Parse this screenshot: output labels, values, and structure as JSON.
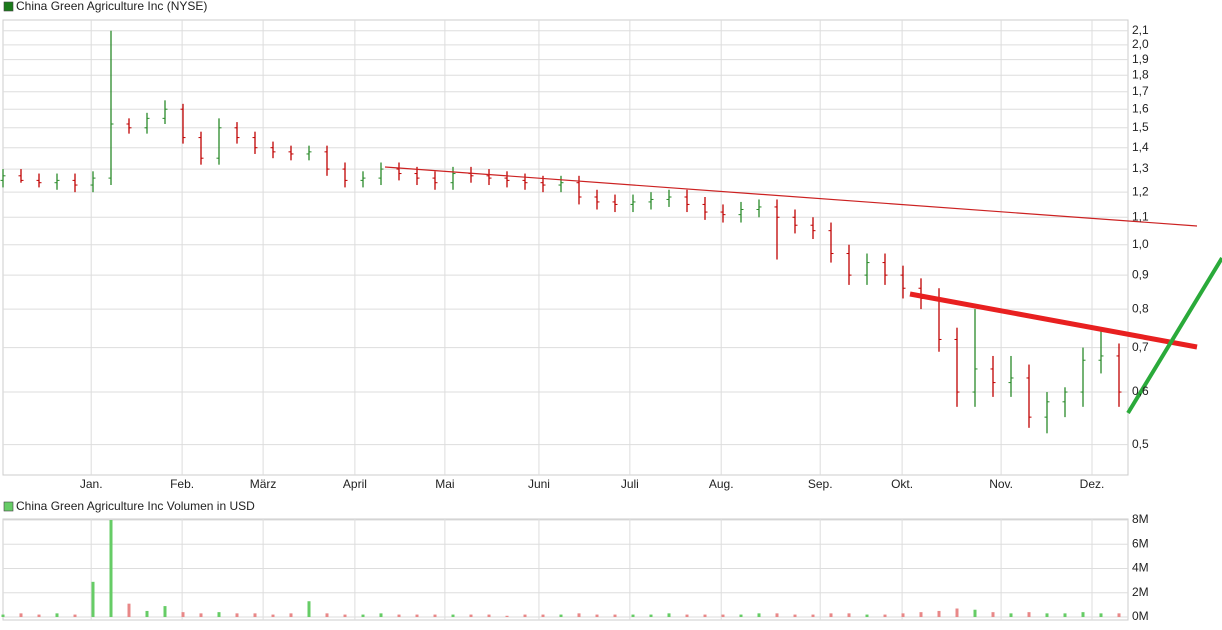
{
  "chart_data": [
    {
      "type": "ohlc",
      "title": "China Green Agriculture Inc (NYSE)",
      "legend_color": "#1a7a1a",
      "up_color": "#2a8a2a",
      "down_color": "#c00000",
      "log_scale": true,
      "grid": true,
      "xlim": [
        0,
        250
      ],
      "ylim": [
        0.45,
        2.18
      ],
      "xticks": [
        {
          "value": 19.6,
          "label": "Jan."
        },
        {
          "value": 39.8,
          "label": "Feb."
        },
        {
          "value": 57.8,
          "label": "März"
        },
        {
          "value": 78.2,
          "label": "April"
        },
        {
          "value": 98.2,
          "label": "Mai"
        },
        {
          "value": 119.1,
          "label": "Juni"
        },
        {
          "value": 139.3,
          "label": "Juli"
        },
        {
          "value": 159.6,
          "label": "Aug."
        },
        {
          "value": 181.6,
          "label": "Sep."
        },
        {
          "value": 199.8,
          "label": "Okt."
        },
        {
          "value": 221.8,
          "label": "Nov."
        },
        {
          "value": 242,
          "label": "Dez."
        }
      ],
      "yticks": [
        {
          "value": 0.5,
          "label": "0,5"
        },
        {
          "value": 0.6,
          "label": "0,6"
        },
        {
          "value": 0.7,
          "label": "0,7"
        },
        {
          "value": 0.8,
          "label": "0,8"
        },
        {
          "value": 0.9,
          "label": "0,9"
        },
        {
          "value": 1.0,
          "label": "1,0"
        },
        {
          "value": 1.1,
          "label": "1,1"
        },
        {
          "value": 1.2,
          "label": "1,2"
        },
        {
          "value": 1.3,
          "label": "1,3"
        },
        {
          "value": 1.4,
          "label": "1,4"
        },
        {
          "value": 1.5,
          "label": "1,5"
        },
        {
          "value": 1.6,
          "label": "1,6"
        },
        {
          "value": 1.7,
          "label": "1,7"
        },
        {
          "value": 1.8,
          "label": "1,8"
        },
        {
          "value": 1.9,
          "label": "1,9"
        },
        {
          "value": 2.0,
          "label": "2,0"
        },
        {
          "value": 2.1,
          "label": "2,1"
        }
      ],
      "x": [
        0,
        4,
        8,
        12,
        16,
        20,
        24,
        28,
        32,
        36,
        40,
        44,
        48,
        52,
        56,
        60,
        64,
        68,
        72,
        76,
        80,
        84,
        88,
        92,
        96,
        100,
        104,
        108,
        112,
        116,
        120,
        124,
        128,
        132,
        136,
        140,
        144,
        148,
        152,
        156,
        160,
        164,
        168,
        172,
        176,
        180,
        184,
        188,
        192,
        196,
        200,
        204,
        208,
        212,
        216,
        220,
        224,
        228,
        232,
        236,
        240,
        244,
        248
      ],
      "open": [
        1.25,
        1.27,
        1.25,
        1.24,
        1.25,
        1.23,
        1.26,
        1.52,
        1.5,
        1.55,
        1.6,
        1.45,
        1.35,
        1.5,
        1.45,
        1.4,
        1.38,
        1.37,
        1.38,
        1.3,
        1.25,
        1.26,
        1.3,
        1.28,
        1.26,
        1.24,
        1.28,
        1.27,
        1.26,
        1.25,
        1.24,
        1.23,
        1.24,
        1.18,
        1.16,
        1.15,
        1.16,
        1.17,
        1.18,
        1.15,
        1.12,
        1.11,
        1.13,
        1.14,
        1.1,
        1.07,
        1.05,
        0.97,
        0.9,
        0.94,
        0.9,
        0.86,
        0.83,
        0.72,
        0.6,
        0.65,
        0.62,
        0.63,
        0.55,
        0.58,
        0.6,
        0.67,
        0.68
      ],
      "high": [
        1.3,
        1.3,
        1.28,
        1.28,
        1.28,
        1.29,
        2.1,
        1.55,
        1.58,
        1.65,
        1.63,
        1.48,
        1.55,
        1.53,
        1.48,
        1.43,
        1.41,
        1.41,
        1.41,
        1.33,
        1.29,
        1.33,
        1.33,
        1.31,
        1.29,
        1.31,
        1.31,
        1.3,
        1.29,
        1.28,
        1.27,
        1.27,
        1.27,
        1.21,
        1.19,
        1.19,
        1.2,
        1.21,
        1.21,
        1.18,
        1.15,
        1.16,
        1.17,
        1.17,
        1.13,
        1.1,
        1.08,
        1.0,
        0.97,
        0.97,
        0.93,
        0.89,
        0.86,
        0.75,
        0.8,
        0.68,
        0.68,
        0.66,
        0.6,
        0.61,
        0.7,
        0.75,
        0.71
      ],
      "low": [
        1.22,
        1.24,
        1.22,
        1.21,
        1.2,
        1.2,
        1.23,
        1.47,
        1.47,
        1.52,
        1.42,
        1.32,
        1.32,
        1.42,
        1.37,
        1.35,
        1.34,
        1.34,
        1.27,
        1.22,
        1.22,
        1.23,
        1.25,
        1.23,
        1.21,
        1.21,
        1.24,
        1.23,
        1.22,
        1.21,
        1.2,
        1.2,
        1.15,
        1.13,
        1.12,
        1.12,
        1.13,
        1.14,
        1.12,
        1.09,
        1.08,
        1.08,
        1.1,
        0.95,
        1.04,
        1.02,
        0.94,
        0.87,
        0.87,
        0.87,
        0.83,
        0.8,
        0.69,
        0.57,
        0.57,
        0.59,
        0.59,
        0.53,
        0.52,
        0.55,
        0.57,
        0.64,
        0.57
      ],
      "close": [
        1.27,
        1.25,
        1.24,
        1.25,
        1.23,
        1.26,
        1.52,
        1.5,
        1.55,
        1.6,
        1.45,
        1.35,
        1.5,
        1.45,
        1.4,
        1.38,
        1.37,
        1.38,
        1.3,
        1.25,
        1.26,
        1.3,
        1.28,
        1.26,
        1.24,
        1.28,
        1.27,
        1.26,
        1.25,
        1.24,
        1.23,
        1.24,
        1.18,
        1.16,
        1.15,
        1.16,
        1.17,
        1.18,
        1.15,
        1.12,
        1.11,
        1.13,
        1.14,
        1.1,
        1.07,
        1.05,
        0.97,
        0.9,
        0.94,
        0.9,
        0.86,
        0.83,
        0.72,
        0.6,
        0.65,
        0.62,
        0.63,
        0.55,
        0.58,
        0.6,
        0.67,
        0.68,
        0.6
      ]
    },
    {
      "type": "bar",
      "title": "China Green Agriculture Inc Volumen in USD",
      "legend_color": "#66cc66",
      "up_color": "#66cc66",
      "down_color": "#e88888",
      "grid": true,
      "ylim": [
        0,
        8
      ],
      "yticks": [
        {
          "value": 0,
          "label": "0M"
        },
        {
          "value": 2,
          "label": "2M"
        },
        {
          "value": 4,
          "label": "4M"
        },
        {
          "value": 6,
          "label": "6M"
        },
        {
          "value": 8,
          "label": "8M"
        }
      ],
      "values": [
        0.2,
        0.3,
        0.2,
        0.3,
        0.2,
        2.9,
        8,
        1.1,
        0.5,
        0.9,
        0.4,
        0.3,
        0.4,
        0.3,
        0.3,
        0.2,
        0.3,
        1.3,
        0.3,
        0.2,
        0.2,
        0.3,
        0.2,
        0.2,
        0.2,
        0.2,
        0.2,
        0.2,
        0.1,
        0.2,
        0.2,
        0.2,
        0.3,
        0.2,
        0.2,
        0.2,
        0.2,
        0.3,
        0.2,
        0.2,
        0.2,
        0.2,
        0.3,
        0.3,
        0.2,
        0.2,
        0.3,
        0.3,
        0.2,
        0.2,
        0.3,
        0.4,
        0.5,
        0.7,
        0.6,
        0.4,
        0.3,
        0.4,
        0.3,
        0.3,
        0.4,
        0.3,
        0.3
      ]
    }
  ]
}
